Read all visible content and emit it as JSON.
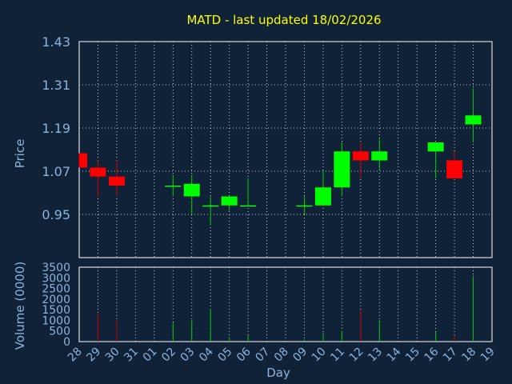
{
  "colors": {
    "background": "#0f2238",
    "plot_bg": "#0f2238",
    "title": "#ffff00",
    "axis_text": "#8fb3d9",
    "grid": "#ffffff",
    "up": "#00ff00",
    "down": "#ff0000",
    "wick_up": "#00cc00",
    "wick_down": "#cc0000"
  },
  "chart_data": {
    "type": "candlestick",
    "title": "MATD - last updated 18/02/2026",
    "xlabel": "Day",
    "price_label": "Price",
    "volume_label": "Volume (0000)",
    "price_ylim": [
      0.83,
      1.43
    ],
    "price_ticks": [
      "0.95",
      "1.07",
      "1.19",
      "1.31",
      "1.43"
    ],
    "volume_ylim": [
      0,
      3500
    ],
    "volume_ticks": [
      "0",
      "500",
      "1000",
      "1500",
      "2000",
      "2500",
      "3000",
      "3500"
    ],
    "x_ticks": [
      "28",
      "29",
      "30",
      "31",
      "01",
      "02",
      "03",
      "04",
      "05",
      "06",
      "07",
      "08",
      "09",
      "10",
      "11",
      "12",
      "13",
      "14",
      "15",
      "16",
      "17",
      "18",
      "19"
    ],
    "candles": [
      {
        "x": "28",
        "open": 1.12,
        "close": 1.08,
        "high": 1.12,
        "low": 1.08,
        "volume": 0
      },
      {
        "x": "29",
        "open": 1.08,
        "close": 1.055,
        "high": 1.1,
        "low": 1.0,
        "volume": 1300
      },
      {
        "x": "30",
        "open": 1.055,
        "close": 1.03,
        "high": 1.1,
        "low": 1.0,
        "volume": 1000
      },
      {
        "x": "02",
        "open": 1.03,
        "close": 1.03,
        "high": 1.06,
        "low": 1.0,
        "volume": 900
      },
      {
        "x": "03",
        "open": 1.0,
        "close": 1.035,
        "high": 1.06,
        "low": 0.95,
        "volume": 1000
      },
      {
        "x": "04",
        "open": 0.975,
        "close": 0.975,
        "high": 1.0,
        "low": 0.92,
        "volume": 1550
      },
      {
        "x": "05",
        "open": 0.975,
        "close": 1.0,
        "high": 1.0,
        "low": 0.96,
        "volume": 200
      },
      {
        "x": "06",
        "open": 0.975,
        "close": 0.975,
        "high": 1.05,
        "low": 0.975,
        "volume": 300
      },
      {
        "x": "09",
        "open": 0.975,
        "close": 0.975,
        "high": 1.0,
        "low": 0.95,
        "volume": 100
      },
      {
        "x": "10",
        "open": 0.975,
        "close": 1.025,
        "high": 1.07,
        "low": 0.975,
        "volume": 400
      },
      {
        "x": "11",
        "open": 1.025,
        "close": 1.125,
        "high": 1.15,
        "low": 1.0,
        "volume": 500
      },
      {
        "x": "12",
        "open": 1.125,
        "close": 1.1,
        "high": 1.15,
        "low": 1.05,
        "volume": 1450
      },
      {
        "x": "13",
        "open": 1.1,
        "close": 1.125,
        "high": 1.16,
        "low": 1.075,
        "volume": 1000
      },
      {
        "x": "16",
        "open": 1.125,
        "close": 1.15,
        "high": 1.15,
        "low": 1.05,
        "volume": 450
      },
      {
        "x": "17",
        "open": 1.1,
        "close": 1.05,
        "high": 1.125,
        "low": 1.05,
        "volume": 300
      },
      {
        "x": "18",
        "open": 1.2,
        "close": 1.225,
        "high": 1.3,
        "low": 1.15,
        "volume": 3100
      }
    ]
  }
}
